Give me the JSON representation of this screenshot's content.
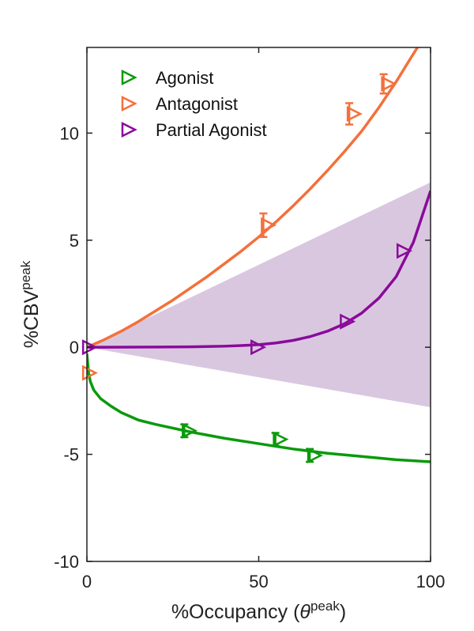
{
  "chart_data": {
    "type": "scatter",
    "xlabel": {
      "prefix": "%Occupancy (",
      "symbol": "θ",
      "sup": "peak",
      "suffix": ")"
    },
    "ylabel": {
      "main": "%CBV",
      "sup": "peak"
    },
    "xlim": [
      0,
      100
    ],
    "ylim": [
      -10,
      14
    ],
    "xticks": [
      0,
      50,
      100
    ],
    "xtick_labels": [
      "0",
      "50",
      "100"
    ],
    "yticks": [
      -10,
      -5,
      0,
      5,
      10
    ],
    "ytick_labels": [
      "-10",
      "-5",
      "0",
      "5",
      "10"
    ],
    "grid": false,
    "legend_position": "top-left",
    "band": {
      "color": "#d9c7e0",
      "upper": [
        [
          0,
          0
        ],
        [
          100,
          7.7
        ]
      ],
      "lower": [
        [
          0,
          0
        ],
        [
          100,
          -2.8
        ]
      ]
    },
    "series": [
      {
        "name": "Agonist",
        "color": "#0b9a0b",
        "points": [
          {
            "x": 29.5,
            "y": -3.9,
            "err": 0.3
          },
          {
            "x": 56,
            "y": -4.3,
            "err": 0.3
          },
          {
            "x": 66,
            "y": -5.05,
            "err": 0.3
          }
        ],
        "fit": [
          [
            0,
            -0.3
          ],
          [
            0.5,
            -1.2
          ],
          [
            1,
            -1.6
          ],
          [
            2,
            -2.0
          ],
          [
            4,
            -2.4
          ],
          [
            7,
            -2.75
          ],
          [
            10,
            -3.05
          ],
          [
            15,
            -3.4
          ],
          [
            20,
            -3.6
          ],
          [
            30,
            -3.95
          ],
          [
            40,
            -4.25
          ],
          [
            50,
            -4.5
          ],
          [
            60,
            -4.75
          ],
          [
            70,
            -4.95
          ],
          [
            80,
            -5.1
          ],
          [
            90,
            -5.25
          ],
          [
            100,
            -5.35
          ]
        ]
      },
      {
        "name": "Antagonist",
        "color": "#f4703a",
        "points": [
          {
            "x": 0.5,
            "y": -1.2,
            "err": 0
          },
          {
            "x": 52.5,
            "y": 5.7,
            "err": 0.55
          },
          {
            "x": 77.5,
            "y": 10.9,
            "err": 0.5
          },
          {
            "x": 87.5,
            "y": 12.3,
            "err": 0.45
          }
        ],
        "fit": [
          [
            0,
            0
          ],
          [
            5,
            0.35
          ],
          [
            10,
            0.75
          ],
          [
            15,
            1.2
          ],
          [
            20,
            1.7
          ],
          [
            25,
            2.2
          ],
          [
            30,
            2.75
          ],
          [
            35,
            3.3
          ],
          [
            40,
            3.9
          ],
          [
            45,
            4.5
          ],
          [
            50,
            5.15
          ],
          [
            55,
            5.85
          ],
          [
            60,
            6.6
          ],
          [
            65,
            7.4
          ],
          [
            70,
            8.25
          ],
          [
            75,
            9.15
          ],
          [
            80,
            10.1
          ],
          [
            85,
            11.2
          ],
          [
            90,
            12.4
          ],
          [
            95,
            13.7
          ],
          [
            97,
            14.2
          ]
        ]
      },
      {
        "name": "Partial Agonist",
        "color": "#8a0a9a",
        "points": [
          {
            "x": 0.5,
            "y": 0,
            "err": 0
          },
          {
            "x": 49.5,
            "y": 0,
            "err": 0
          },
          {
            "x": 75.5,
            "y": 1.2,
            "err": 0
          },
          {
            "x": 92,
            "y": 4.5,
            "err": 0
          }
        ],
        "fit": [
          [
            0,
            0
          ],
          [
            20,
            0.01
          ],
          [
            30,
            0.02
          ],
          [
            40,
            0.05
          ],
          [
            45,
            0.08
          ],
          [
            50,
            0.12
          ],
          [
            55,
            0.2
          ],
          [
            60,
            0.32
          ],
          [
            65,
            0.5
          ],
          [
            70,
            0.75
          ],
          [
            75,
            1.1
          ],
          [
            80,
            1.6
          ],
          [
            85,
            2.3
          ],
          [
            90,
            3.3
          ],
          [
            95,
            4.9
          ],
          [
            100,
            7.3
          ]
        ]
      }
    ]
  }
}
